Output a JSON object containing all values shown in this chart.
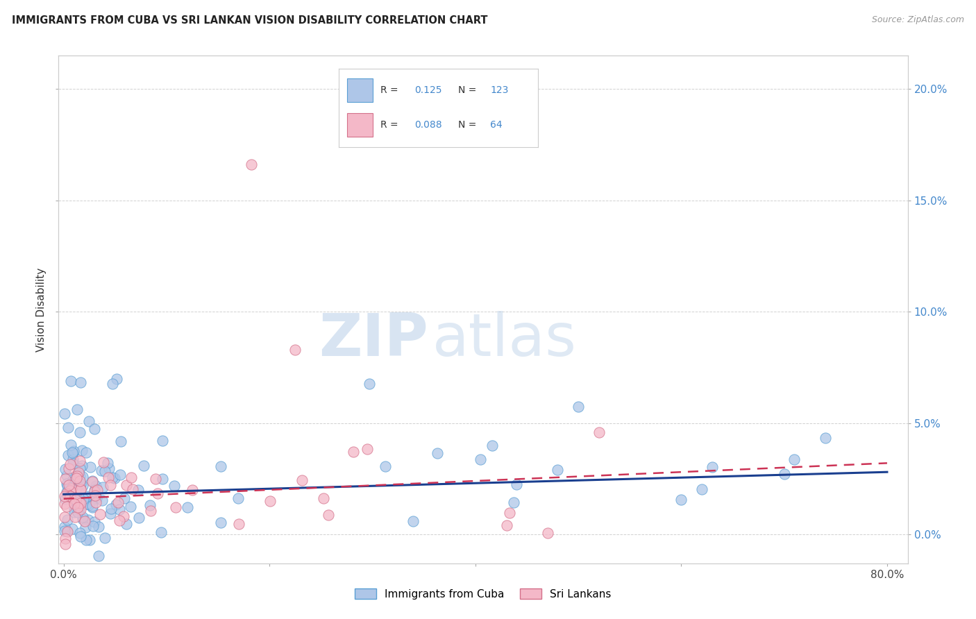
{
  "title": "IMMIGRANTS FROM CUBA VS SRI LANKAN VISION DISABILITY CORRELATION CHART",
  "source": "Source: ZipAtlas.com",
  "ylabel": "Vision Disability",
  "xlim": [
    -0.005,
    0.82
  ],
  "ylim": [
    -0.013,
    0.215
  ],
  "yticks": [
    0.0,
    0.05,
    0.1,
    0.15,
    0.2
  ],
  "ytick_right_labels": [
    "0.0%",
    "5.0%",
    "10.0%",
    "15.0%",
    "20.0%"
  ],
  "xticks": [
    0.0,
    0.2,
    0.4,
    0.6,
    0.8
  ],
  "xtick_labels_show": [
    "0.0%",
    "",
    "",
    "",
    "80.0%"
  ],
  "cuba_color": "#aec6e8",
  "cuba_edge_color": "#5a9fd4",
  "srilanka_color": "#f4b8c8",
  "srilanka_edge_color": "#d4708a",
  "trend_cuba_color": "#1a3f8f",
  "trend_srilanka_color": "#cc3355",
  "watermark_zip": "ZIP",
  "watermark_atlas": "atlas",
  "legend_r_cuba": "0.125",
  "legend_n_cuba": "123",
  "legend_r_srilanka": "0.088",
  "legend_n_srilanka": "64",
  "legend_label_cuba": "Immigrants from Cuba",
  "legend_label_srilanka": "Sri Lankans",
  "right_axis_color": "#4488cc",
  "background_color": "#ffffff",
  "grid_color": "#cccccc",
  "trend_cuba_start_y": 0.018,
  "trend_cuba_end_y": 0.028,
  "trend_srilanka_start_y": 0.016,
  "trend_srilanka_end_y": 0.032
}
